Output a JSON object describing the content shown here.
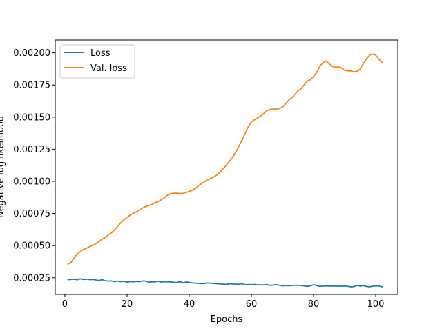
{
  "chart_data": {
    "type": "line",
    "xlabel": "Epochs",
    "ylabel": "Negative log likelihood",
    "xlim": [
      -3.1,
      107.1
    ],
    "ylim": [
      0.00012,
      0.0021
    ],
    "xticks": [
      0,
      20,
      40,
      60,
      80,
      100
    ],
    "xtick_labels": [
      "0",
      "20",
      "40",
      "60",
      "80",
      "100"
    ],
    "yticks": [
      0.00025,
      0.0005,
      0.00075,
      0.001,
      0.00125,
      0.0015,
      0.00175,
      0.002
    ],
    "ytick_labels": [
      "0.00025",
      "0.00050",
      "0.00075",
      "0.00100",
      "0.00125",
      "0.00150",
      "0.00175",
      "0.00200"
    ],
    "grid": false,
    "legend_position": "top-left",
    "series": [
      {
        "name": "Loss",
        "color": "#1f77b4",
        "points": [
          [
            1,
            0.000235
          ],
          [
            2,
            0.000237
          ],
          [
            3,
            0.000238
          ],
          [
            4,
            0.000234
          ],
          [
            5,
            0.000242
          ],
          [
            6,
            0.000236
          ],
          [
            7,
            0.000239
          ],
          [
            8,
            0.000235
          ],
          [
            9,
            0.000237
          ],
          [
            10,
            0.000233
          ],
          [
            11,
            0.000228
          ],
          [
            12,
            0.000236
          ],
          [
            13,
            0.000226
          ],
          [
            14,
            0.000224
          ],
          [
            15,
            0.000225
          ],
          [
            16,
            0.00022
          ],
          [
            17,
            0.000224
          ],
          [
            18,
            0.000219
          ],
          [
            19,
            0.000222
          ],
          [
            20,
            0.000216
          ],
          [
            21,
            0.00022
          ],
          [
            22,
            0.000218
          ],
          [
            23,
            0.000221
          ],
          [
            24,
            0.000219
          ],
          [
            25,
            0.000225
          ],
          [
            26,
            0.000224
          ],
          [
            27,
            0.000216
          ],
          [
            28,
            0.000217
          ],
          [
            29,
            0.000218
          ],
          [
            30,
            0.000222
          ],
          [
            31,
            0.000216
          ],
          [
            32,
            0.000219
          ],
          [
            33,
            0.000218
          ],
          [
            34,
            0.000217
          ],
          [
            35,
            0.000215
          ],
          [
            36,
            0.000212
          ],
          [
            37,
            0.00022
          ],
          [
            38,
            0.000211
          ],
          [
            39,
            0.000217
          ],
          [
            40,
            0.000213
          ],
          [
            41,
            0.00021
          ],
          [
            42,
            0.000208
          ],
          [
            43,
            0.000206
          ],
          [
            44,
            0.000204
          ],
          [
            45,
            0.000205
          ],
          [
            46,
            0.00021
          ],
          [
            47,
            0.000207
          ],
          [
            48,
            0.000205
          ],
          [
            49,
            0.000203
          ],
          [
            50,
            0.000202
          ],
          [
            51,
            0.0002
          ],
          [
            52,
            0.000198
          ],
          [
            53,
            0.000203
          ],
          [
            54,
            0.000201
          ],
          [
            55,
            0.000199
          ],
          [
            56,
            0.0002
          ],
          [
            57,
            0.000204
          ],
          [
            58,
            0.000195
          ],
          [
            59,
            0.000197
          ],
          [
            60,
            0.000196
          ],
          [
            61,
            0.000198
          ],
          [
            62,
            0.000194
          ],
          [
            63,
            0.000195
          ],
          [
            64,
            0.000193
          ],
          [
            65,
            0.000197
          ],
          [
            66,
            0.00019
          ],
          [
            67,
            0.000193
          ],
          [
            68,
            0.000196
          ],
          [
            69,
            0.000192
          ],
          [
            70,
            0.000187
          ],
          [
            71,
            0.000189
          ],
          [
            72,
            0.000188
          ],
          [
            73,
            0.00019
          ],
          [
            74,
            0.000191
          ],
          [
            75,
            0.000192
          ],
          [
            76,
            0.00019
          ],
          [
            77,
            0.000186
          ],
          [
            78,
            0.000183
          ],
          [
            79,
            0.000187
          ],
          [
            80,
            0.000195
          ],
          [
            81,
            0.000189
          ],
          [
            82,
            0.000183
          ],
          [
            83,
            0.000185
          ],
          [
            84,
            0.000187
          ],
          [
            85,
            0.000184
          ],
          [
            86,
            0.000186
          ],
          [
            87,
            0.000185
          ],
          [
            88,
            0.000186
          ],
          [
            89,
            0.000184
          ],
          [
            90,
            0.000186
          ],
          [
            91,
            0.000183
          ],
          [
            92,
            0.000179
          ],
          [
            93,
            0.000181
          ],
          [
            94,
            0.00019
          ],
          [
            95,
            0.000185
          ],
          [
            96,
            0.000189
          ],
          [
            97,
            0.000183
          ],
          [
            98,
            0.000179
          ],
          [
            99,
            0.000184
          ],
          [
            100,
            0.000187
          ],
          [
            101,
            0.000186
          ],
          [
            102,
            0.000179
          ]
        ]
      },
      {
        "name": "Val. loss",
        "color": "#ff7f0e",
        "points": [
          [
            1,
            0.000355
          ],
          [
            2,
            0.00037
          ],
          [
            3,
            0.000405
          ],
          [
            4,
            0.000435
          ],
          [
            5,
            0.000455
          ],
          [
            6,
            0.00047
          ],
          [
            7,
            0.00048
          ],
          [
            8,
            0.000493
          ],
          [
            9,
            0.000503
          ],
          [
            10,
            0.000515
          ],
          [
            11,
            0.000532
          ],
          [
            12,
            0.00055
          ],
          [
            13,
            0.000565
          ],
          [
            14,
            0.000583
          ],
          [
            15,
            0.0006
          ],
          [
            16,
            0.000622
          ],
          [
            17,
            0.00065
          ],
          [
            18,
            0.000678
          ],
          [
            19,
            0.000703
          ],
          [
            20,
            0.00072
          ],
          [
            21,
            0.000737
          ],
          [
            22,
            0.00075
          ],
          [
            23,
            0.000762
          ],
          [
            24,
            0.000777
          ],
          [
            25,
            0.000793
          ],
          [
            26,
            0.000803
          ],
          [
            27,
            0.000812
          ],
          [
            28,
            0.000822
          ],
          [
            29,
            0.000834
          ],
          [
            30,
            0.000843
          ],
          [
            31,
            0.000857
          ],
          [
            32,
            0.000872
          ],
          [
            33,
            0.000893
          ],
          [
            34,
            0.000905
          ],
          [
            35,
            0.000908
          ],
          [
            36,
            0.000908
          ],
          [
            37,
            0.000906
          ],
          [
            38,
            0.000907
          ],
          [
            39,
            0.000914
          ],
          [
            40,
            0.000921
          ],
          [
            41,
            0.000932
          ],
          [
            42,
            0.000945
          ],
          [
            43,
            0.000967
          ],
          [
            44,
            0.000983
          ],
          [
            45,
            0.000999
          ],
          [
            46,
            0.001012
          ],
          [
            47,
            0.001024
          ],
          [
            48,
            0.001036
          ],
          [
            49,
            0.001051
          ],
          [
            50,
            0.001075
          ],
          [
            51,
            0.001102
          ],
          [
            52,
            0.001127
          ],
          [
            53,
            0.001159
          ],
          [
            54,
            0.001188
          ],
          [
            55,
            0.001228
          ],
          [
            56,
            0.001275
          ],
          [
            57,
            0.00132
          ],
          [
            58,
            0.001372
          ],
          [
            59,
            0.001425
          ],
          [
            60,
            0.001462
          ],
          [
            61,
            0.001479
          ],
          [
            62,
            0.001493
          ],
          [
            63,
            0.001508
          ],
          [
            64,
            0.00153
          ],
          [
            65,
            0.00155
          ],
          [
            66,
            0.00156
          ],
          [
            67,
            0.001563
          ],
          [
            68,
            0.001562
          ],
          [
            69,
            0.001566
          ],
          [
            70,
            0.001578
          ],
          [
            71,
            0.001603
          ],
          [
            72,
            0.001632
          ],
          [
            73,
            0.001651
          ],
          [
            74,
            0.001678
          ],
          [
            75,
            0.001704
          ],
          [
            76,
            0.001722
          ],
          [
            77,
            0.001752
          ],
          [
            78,
            0.001781
          ],
          [
            79,
            0.001792
          ],
          [
            80,
            0.001817
          ],
          [
            81,
            0.001845
          ],
          [
            82,
            0.001897
          ],
          [
            83,
            0.001921
          ],
          [
            84,
            0.001937
          ],
          [
            85,
            0.001917
          ],
          [
            86,
            0.001896
          ],
          [
            87,
            0.001888
          ],
          [
            88,
            0.001891
          ],
          [
            89,
            0.001882
          ],
          [
            90,
            0.001866
          ],
          [
            91,
            0.00186
          ],
          [
            92,
            0.00186
          ],
          [
            93,
            0.001853
          ],
          [
            94,
            0.001857
          ],
          [
            95,
            0.001875
          ],
          [
            96,
            0.001916
          ],
          [
            97,
            0.001952
          ],
          [
            98,
            0.001982
          ],
          [
            99,
            0.001991
          ],
          [
            100,
            0.001982
          ],
          [
            101,
            0.001951
          ],
          [
            102,
            0.001927
          ]
        ]
      }
    ]
  }
}
